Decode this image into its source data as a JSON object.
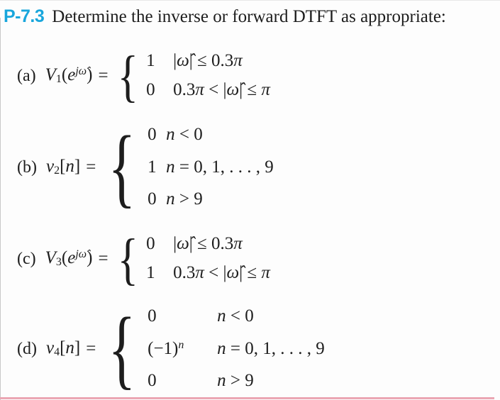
{
  "header": {
    "tag": "P-7.3",
    "title": "Determine the inverse or forward DTFT as appropriate:"
  },
  "colors": {
    "accent": "#18a6dc",
    "text": "#1d1d1d",
    "rule-pink": "#eba6b3",
    "border-gray": "#c9c9c9"
  },
  "problems": [
    {
      "label": "(a)",
      "lhs": [
        {
          "t": "V",
          "i": 1
        },
        {
          "t": "1",
          "sub": 1
        },
        {
          "t": "("
        },
        {
          "t": "e",
          "i": 1
        },
        {
          "t": "jω̂",
          "i": 1,
          "sup": 1
        },
        {
          "t": ")"
        }
      ],
      "equals": "=",
      "brace": "{",
      "cases": [
        {
          "value": [
            {
              "t": "1"
            }
          ],
          "cond": [
            {
              "t": "|"
            },
            {
              "t": "ω̂",
              "i": 1
            },
            {
              "t": "| ≤ 0.3"
            },
            {
              "t": "π",
              "i": 1
            }
          ]
        },
        {
          "value": [
            {
              "t": "0"
            }
          ],
          "cond": [
            {
              "t": "0.3"
            },
            {
              "t": "π",
              "i": 1
            },
            {
              "t": " < |"
            },
            {
              "t": "ω̂",
              "i": 1
            },
            {
              "t": "| ≤ "
            },
            {
              "t": "π",
              "i": 1
            }
          ]
        }
      ]
    },
    {
      "label": "(b)",
      "lhs": [
        {
          "t": "v",
          "i": 1
        },
        {
          "t": "2",
          "sub": 1
        },
        {
          "t": "["
        },
        {
          "t": "n",
          "i": 1
        },
        {
          "t": "]"
        }
      ],
      "equals": "=",
      "brace": "{",
      "cases": [
        {
          "value": [
            {
              "t": "0"
            }
          ],
          "cond": [
            {
              "t": "n",
              "i": 1
            },
            {
              "t": " < 0"
            }
          ]
        },
        {
          "value": [
            {
              "t": "1"
            }
          ],
          "cond": [
            {
              "t": "n",
              "i": 1
            },
            {
              "t": " = 0, 1, . . . , 9"
            }
          ]
        },
        {
          "value": [
            {
              "t": "0"
            }
          ],
          "cond": [
            {
              "t": "n",
              "i": 1
            },
            {
              "t": " > 9"
            }
          ]
        }
      ]
    },
    {
      "label": "(c)",
      "lhs": [
        {
          "t": "V",
          "i": 1
        },
        {
          "t": "3",
          "sub": 1
        },
        {
          "t": "("
        },
        {
          "t": "e",
          "i": 1
        },
        {
          "t": "jω̂",
          "i": 1,
          "sup": 1
        },
        {
          "t": ")"
        }
      ],
      "equals": "=",
      "brace": "{",
      "cases": [
        {
          "value": [
            {
              "t": "0"
            }
          ],
          "cond": [
            {
              "t": "|"
            },
            {
              "t": "ω̂",
              "i": 1
            },
            {
              "t": "| ≤ 0.3"
            },
            {
              "t": "π",
              "i": 1
            }
          ]
        },
        {
          "value": [
            {
              "t": "1"
            }
          ],
          "cond": [
            {
              "t": "0.3"
            },
            {
              "t": "π",
              "i": 1
            },
            {
              "t": " < |"
            },
            {
              "t": "ω̂",
              "i": 1
            },
            {
              "t": "| ≤ "
            },
            {
              "t": "π",
              "i": 1
            }
          ]
        }
      ]
    },
    {
      "label": "(d)",
      "lhs": [
        {
          "t": "v",
          "i": 1
        },
        {
          "t": "4",
          "sub": 1
        },
        {
          "t": "["
        },
        {
          "t": "n",
          "i": 1
        },
        {
          "t": "]"
        }
      ],
      "equals": "=",
      "brace": "{",
      "cases": [
        {
          "value": [
            {
              "t": "0"
            }
          ],
          "cond": [
            {
              "t": "n",
              "i": 1
            },
            {
              "t": " < 0"
            }
          ]
        },
        {
          "value": [
            {
              "t": "(−1)"
            },
            {
              "t": "n",
              "i": 1,
              "sup": 1
            }
          ],
          "cond": [
            {
              "t": "n",
              "i": 1
            },
            {
              "t": " = 0, 1, . . . , 9"
            }
          ]
        },
        {
          "value": [
            {
              "t": "0"
            }
          ],
          "cond": [
            {
              "t": "n",
              "i": 1
            },
            {
              "t": " > 9"
            }
          ]
        }
      ]
    }
  ]
}
